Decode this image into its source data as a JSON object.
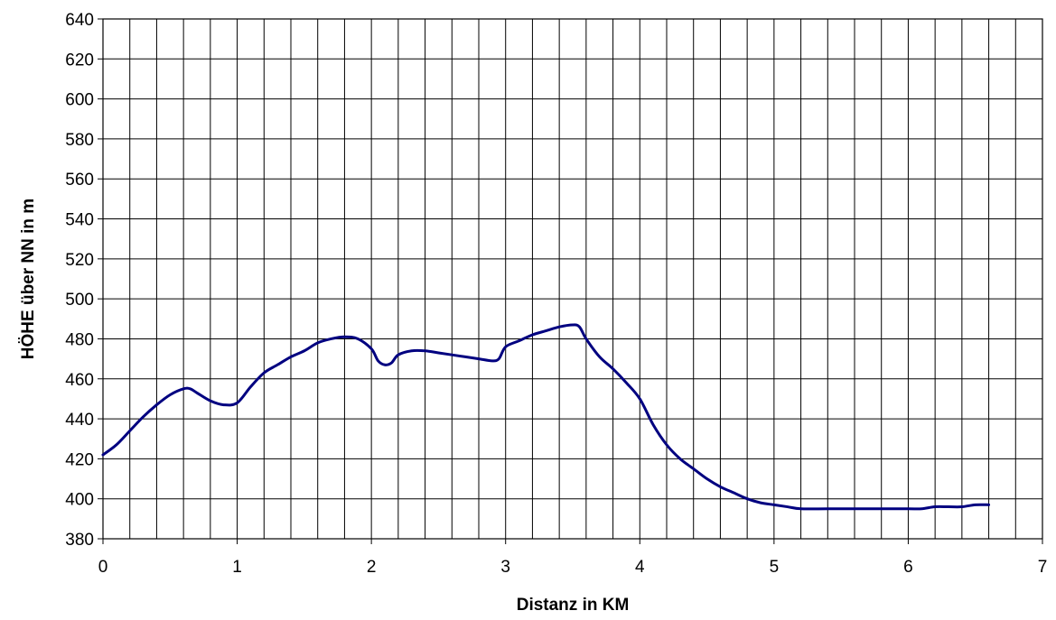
{
  "chart_data": {
    "type": "line",
    "title": "",
    "xlabel": "Distanz in KM",
    "ylabel": "HÖHE über NN in m",
    "xlim": [
      0,
      7
    ],
    "ylim": [
      380,
      640
    ],
    "x_major_ticks": [
      0,
      1,
      2,
      3,
      4,
      5,
      6,
      7
    ],
    "x_grid_step": 0.2,
    "y_ticks": [
      380,
      400,
      420,
      440,
      460,
      480,
      500,
      520,
      540,
      560,
      580,
      600,
      620,
      640
    ],
    "grid": true,
    "legend": "none",
    "line_color": "#000080",
    "series": [
      {
        "x": [
          0,
          0.1,
          0.2,
          0.3,
          0.4,
          0.5,
          0.6,
          0.65,
          0.7,
          0.8,
          0.9,
          1.0,
          1.1,
          1.2,
          1.3,
          1.4,
          1.5,
          1.6,
          1.7,
          1.8,
          1.9,
          2.0,
          2.05,
          2.1,
          2.15,
          2.2,
          2.3,
          2.4,
          2.5,
          2.6,
          2.7,
          2.8,
          2.9,
          2.95,
          3.0,
          3.1,
          3.2,
          3.3,
          3.4,
          3.5,
          3.55,
          3.6,
          3.7,
          3.8,
          3.9,
          4.0,
          4.1,
          4.2,
          4.3,
          4.4,
          4.5,
          4.6,
          4.7,
          4.8,
          4.9,
          5.0,
          5.1,
          5.2,
          5.4,
          5.6,
          5.8,
          6.0,
          6.1,
          6.2,
          6.3,
          6.4,
          6.5,
          6.6
        ],
        "y": [
          422,
          427,
          434,
          441,
          447,
          452,
          455,
          455,
          453,
          449,
          447,
          448,
          456,
          463,
          467,
          471,
          474,
          478,
          480,
          481,
          480,
          475,
          469,
          467,
          468,
          472,
          474,
          474,
          473,
          472,
          471,
          470,
          469,
          470,
          476,
          479,
          482,
          484,
          486,
          487,
          486,
          480,
          471,
          465,
          458,
          450,
          437,
          427,
          420,
          415,
          410,
          406,
          403,
          400,
          398,
          397,
          396,
          395,
          395,
          395,
          395,
          395,
          395,
          396,
          396,
          396,
          397,
          397
        ]
      }
    ]
  }
}
